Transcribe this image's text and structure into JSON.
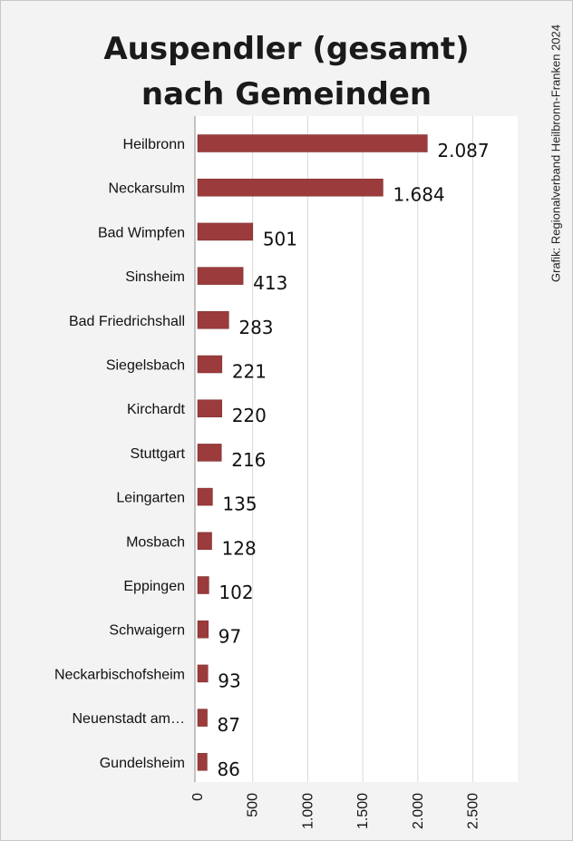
{
  "title_lines": [
    "Auspendler (gesamt)",
    "nach Gemeinden"
  ],
  "credit": "Grafik: Regionalverband Heilbronn-Franken 2024",
  "colors": {
    "bar": "#9b3b3b",
    "bar_edge": "#7a2a2a",
    "plot_background": "#ffffff",
    "frame_background": "#f3f3f3",
    "grid": "#d9d9d9"
  },
  "chart_data": {
    "type": "bar",
    "orientation": "horizontal",
    "title": "Auspendler (gesamt) nach Gemeinden",
    "categories": [
      "Heilbronn",
      "Neckarsulm",
      "Bad Wimpfen",
      "Sinsheim",
      "Bad Friedrichshall",
      "Siegelsbach",
      "Kirchardt",
      "Stuttgart",
      "Leingarten",
      "Mosbach",
      "Eppingen",
      "Schwaigern",
      "Neckarbischofsheim",
      "Neuenstadt am…",
      "Gundelsheim"
    ],
    "values": [
      2087,
      1684,
      501,
      413,
      283,
      221,
      220,
      216,
      135,
      128,
      102,
      97,
      93,
      87,
      86
    ],
    "value_labels": [
      "2.087",
      "1.684",
      "501",
      "413",
      "283",
      "221",
      "220",
      "216",
      "135",
      "128",
      "102",
      "97",
      "93",
      "87",
      "86"
    ],
    "xlim": [
      0,
      2500
    ],
    "xticks": [
      0,
      500,
      1000,
      1500,
      2000,
      2500
    ],
    "xtick_labels": [
      "0",
      "500",
      "1.000",
      "1.500",
      "2.000",
      "2.500"
    ],
    "xlabel": "",
    "ylabel": "",
    "grid": true,
    "legend": "none"
  }
}
